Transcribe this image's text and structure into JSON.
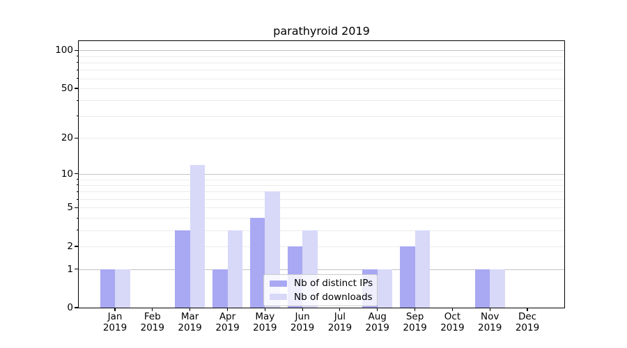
{
  "title": "parathyroid 2019",
  "chart_data": {
    "type": "bar",
    "title": "parathyroid 2019",
    "categories": [
      "Jan 2019",
      "Feb 2019",
      "Mar 2019",
      "Apr 2019",
      "May 2019",
      "Jun 2019",
      "Jul 2019",
      "Aug 2019",
      "Sep 2019",
      "Oct 2019",
      "Nov 2019",
      "Dec 2019"
    ],
    "months": [
      {
        "m": "Jan",
        "y": "2019"
      },
      {
        "m": "Feb",
        "y": "2019"
      },
      {
        "m": "Mar",
        "y": "2019"
      },
      {
        "m": "Apr",
        "y": "2019"
      },
      {
        "m": "May",
        "y": "2019"
      },
      {
        "m": "Jun",
        "y": "2019"
      },
      {
        "m": "Jul",
        "y": "2019"
      },
      {
        "m": "Aug",
        "y": "2019"
      },
      {
        "m": "Sep",
        "y": "2019"
      },
      {
        "m": "Oct",
        "y": "2019"
      },
      {
        "m": "Nov",
        "y": "2019"
      },
      {
        "m": "Dec",
        "y": "2019"
      }
    ],
    "series": [
      {
        "name": "Nb of distinct IPs",
        "color": "#a8a8f3",
        "values": [
          1,
          0,
          3,
          1,
          4,
          2,
          0,
          1,
          2,
          0,
          1,
          0
        ]
      },
      {
        "name": "Nb of downloads",
        "color": "#d8d8f8",
        "values": [
          1,
          0,
          12,
          3,
          7,
          3,
          0,
          1,
          3,
          0,
          1,
          0
        ]
      }
    ],
    "xlabel": "",
    "ylabel": "",
    "yscale": "log1p",
    "ylim": [
      0,
      118
    ],
    "yticks_labeled": [
      0,
      1,
      2,
      5,
      10,
      20,
      50,
      100
    ],
    "yticks_major_grid": [
      1,
      10,
      100
    ],
    "yticks_minor_grid": [
      2,
      3,
      4,
      5,
      6,
      7,
      8,
      9,
      20,
      30,
      40,
      50,
      60,
      70,
      80,
      90
    ],
    "grid": "horizontal, major and minor",
    "legend_position": "lower center"
  },
  "colors": {
    "distinct_ips": "#a8a8f3",
    "downloads": "#d8d8f8",
    "grid_major": "#c2c2c2",
    "grid_minor": "#ebebeb",
    "spine": "#000000"
  }
}
